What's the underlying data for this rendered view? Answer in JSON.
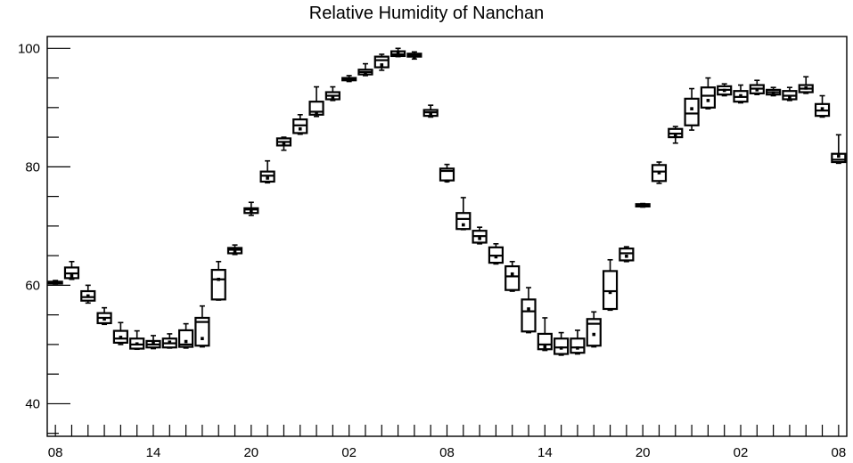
{
  "chart_data": {
    "type": "boxplot",
    "title": "Relative Humidity of Nanchan",
    "xlabel": "",
    "ylabel": "",
    "ylim": [
      34.5,
      102
    ],
    "y_ticks": [
      40,
      60,
      80,
      100
    ],
    "x_range": [
      -0.5,
      48.5
    ],
    "x_tick_positions": [
      0,
      6,
      12,
      18,
      24,
      30,
      36,
      42,
      48
    ],
    "x_tick_labels": [
      "08",
      "14",
      "20",
      "02",
      "08",
      "14",
      "20",
      "02",
      "08"
    ],
    "grid": false,
    "legend": "none",
    "series": [
      {
        "x": 0,
        "whisker_low": 60.2,
        "q1": 60.3,
        "median": 60.5,
        "q3": 60.6,
        "whisker_high": 60.8,
        "mean": 60.5
      },
      {
        "x": 1,
        "whisker_low": 61.0,
        "q1": 61.2,
        "median": 62.0,
        "q3": 63.0,
        "whisker_high": 64.0,
        "mean": 61.6
      },
      {
        "x": 2,
        "whisker_low": 57.0,
        "q1": 57.4,
        "median": 58.0,
        "q3": 59.0,
        "whisker_high": 60.0,
        "mean": 58.2
      },
      {
        "x": 3,
        "whisker_low": 53.4,
        "q1": 53.6,
        "median": 54.5,
        "q3": 55.3,
        "whisker_high": 56.2,
        "mean": 54.3
      },
      {
        "x": 4,
        "whisker_low": 50.0,
        "q1": 50.3,
        "median": 51.0,
        "q3": 52.3,
        "whisker_high": 53.7,
        "mean": 51.2
      },
      {
        "x": 5,
        "whisker_low": 49.2,
        "q1": 49.3,
        "median": 50.0,
        "q3": 51.0,
        "whisker_high": 52.3,
        "mean": 50.1
      },
      {
        "x": 6,
        "whisker_low": 49.3,
        "q1": 49.5,
        "median": 50.0,
        "q3": 50.6,
        "whisker_high": 51.5,
        "mean": 50.2
      },
      {
        "x": 7,
        "whisker_low": 49.4,
        "q1": 49.5,
        "median": 50.2,
        "q3": 51.0,
        "whisker_high": 51.8,
        "mean": 50.4
      },
      {
        "x": 8,
        "whisker_low": 49.4,
        "q1": 49.6,
        "median": 50.0,
        "q3": 52.4,
        "whisker_high": 53.5,
        "mean": 50.5
      },
      {
        "x": 9,
        "whisker_low": 49.6,
        "q1": 49.8,
        "median": 53.8,
        "q3": 54.5,
        "whisker_high": 56.5,
        "mean": 51.0
      },
      {
        "x": 10,
        "whisker_low": 57.5,
        "q1": 57.6,
        "median": 61.0,
        "q3": 62.6,
        "whisker_high": 64.0,
        "mean": 61.0
      },
      {
        "x": 11,
        "whisker_low": 65.2,
        "q1": 65.4,
        "median": 66.0,
        "q3": 66.3,
        "whisker_high": 66.8,
        "mean": 65.8
      },
      {
        "x": 12,
        "whisker_low": 71.8,
        "q1": 72.2,
        "median": 72.8,
        "q3": 73.0,
        "whisker_high": 74.0,
        "mean": 72.5
      },
      {
        "x": 13,
        "whisker_low": 77.3,
        "q1": 77.5,
        "median": 78.5,
        "q3": 79.2,
        "whisker_high": 81.0,
        "mean": 78.1
      },
      {
        "x": 14,
        "whisker_low": 82.8,
        "q1": 83.6,
        "median": 84.2,
        "q3": 84.8,
        "whisker_high": 85.0,
        "mean": 83.9
      },
      {
        "x": 15,
        "whisker_low": 85.5,
        "q1": 85.7,
        "median": 87.0,
        "q3": 88.0,
        "whisker_high": 88.8,
        "mean": 86.4
      },
      {
        "x": 16,
        "whisker_low": 88.5,
        "q1": 88.8,
        "median": 89.3,
        "q3": 91.0,
        "whisker_high": 93.5,
        "mean": 89.0
      },
      {
        "x": 17,
        "whisker_low": 91.2,
        "q1": 91.4,
        "median": 92.0,
        "q3": 92.6,
        "whisker_high": 93.5,
        "mean": 91.8
      },
      {
        "x": 18,
        "whisker_low": 94.4,
        "q1": 94.6,
        "median": 94.8,
        "q3": 95.0,
        "whisker_high": 95.4,
        "mean": 94.8
      },
      {
        "x": 19,
        "whisker_low": 95.4,
        "q1": 95.6,
        "median": 96.0,
        "q3": 96.4,
        "whisker_high": 97.4,
        "mean": 95.8
      },
      {
        "x": 20,
        "whisker_low": 96.3,
        "q1": 96.8,
        "median": 98.0,
        "q3": 98.6,
        "whisker_high": 99.0,
        "mean": 97.2
      },
      {
        "x": 21,
        "whisker_low": 98.6,
        "q1": 98.7,
        "median": 99.0,
        "q3": 99.5,
        "whisker_high": 100.0,
        "mean": 99.2
      },
      {
        "x": 22,
        "whisker_low": 98.2,
        "q1": 98.6,
        "median": 98.9,
        "q3": 99.1,
        "whisker_high": 99.4,
        "mean": 98.4
      },
      {
        "x": 23,
        "whisker_low": 88.4,
        "q1": 88.6,
        "median": 89.2,
        "q3": 89.6,
        "whisker_high": 90.4,
        "mean": 89.0
      },
      {
        "x": 24,
        "whisker_low": 77.5,
        "q1": 77.7,
        "median": 79.3,
        "q3": 79.7,
        "whisker_high": 80.4,
        "mean": 77.6
      },
      {
        "x": 25,
        "whisker_low": 69.4,
        "q1": 69.5,
        "median": 71.2,
        "q3": 72.2,
        "whisker_high": 74.8,
        "mean": 70.2
      },
      {
        "x": 26,
        "whisker_low": 67.0,
        "q1": 67.2,
        "median": 68.3,
        "q3": 69.2,
        "whisker_high": 69.8,
        "mean": 67.9
      },
      {
        "x": 27,
        "whisker_low": 63.6,
        "q1": 63.8,
        "median": 65.0,
        "q3": 66.4,
        "whisker_high": 67.0,
        "mean": 64.8
      },
      {
        "x": 28,
        "whisker_low": 59.0,
        "q1": 59.2,
        "median": 61.5,
        "q3": 63.2,
        "whisker_high": 64.0,
        "mean": 61.9
      },
      {
        "x": 29,
        "whisker_low": 52.0,
        "q1": 52.2,
        "median": 55.6,
        "q3": 57.6,
        "whisker_high": 59.6,
        "mean": 56.0
      },
      {
        "x": 30,
        "whisker_low": 49.0,
        "q1": 49.2,
        "median": 50.0,
        "q3": 51.8,
        "whisker_high": 54.5,
        "mean": 49.6
      },
      {
        "x": 31,
        "whisker_low": 48.2,
        "q1": 48.4,
        "median": 49.5,
        "q3": 51.0,
        "whisker_high": 52.0,
        "mean": 49.4
      },
      {
        "x": 32,
        "whisker_low": 48.4,
        "q1": 48.6,
        "median": 49.5,
        "q3": 51.0,
        "whisker_high": 52.4,
        "mean": 49.4
      },
      {
        "x": 33,
        "whisker_low": 49.6,
        "q1": 49.8,
        "median": 53.5,
        "q3": 54.3,
        "whisker_high": 55.5,
        "mean": 51.7
      },
      {
        "x": 34,
        "whisker_low": 55.8,
        "q1": 56.0,
        "median": 59.0,
        "q3": 62.4,
        "whisker_high": 64.3,
        "mean": 58.8
      },
      {
        "x": 35,
        "whisker_low": 64.0,
        "q1": 64.2,
        "median": 65.4,
        "q3": 66.2,
        "whisker_high": 66.5,
        "mean": 64.9
      },
      {
        "x": 36,
        "whisker_low": 73.2,
        "q1": 73.3,
        "median": 73.5,
        "q3": 73.7,
        "whisker_high": 73.8,
        "mean": 73.5
      },
      {
        "x": 37,
        "whisker_low": 77.2,
        "q1": 77.6,
        "median": 79.2,
        "q3": 80.3,
        "whisker_high": 80.8,
        "mean": 79.0
      },
      {
        "x": 38,
        "whisker_low": 84.0,
        "q1": 85.0,
        "median": 85.6,
        "q3": 86.4,
        "whisker_high": 86.8,
        "mean": 85.4
      },
      {
        "x": 39,
        "whisker_low": 86.2,
        "q1": 87.0,
        "median": 89.0,
        "q3": 91.5,
        "whisker_high": 93.2,
        "mean": 89.8
      },
      {
        "x": 40,
        "whisker_low": 89.8,
        "q1": 90.0,
        "median": 92.0,
        "q3": 93.4,
        "whisker_high": 95.0,
        "mean": 91.2
      },
      {
        "x": 41,
        "whisker_low": 92.0,
        "q1": 92.2,
        "median": 93.0,
        "q3": 93.6,
        "whisker_high": 94.0,
        "mean": 92.9
      },
      {
        "x": 42,
        "whisker_low": 90.8,
        "q1": 91.0,
        "median": 91.8,
        "q3": 92.8,
        "whisker_high": 93.8,
        "mean": 92.0
      },
      {
        "x": 43,
        "whisker_low": 92.2,
        "q1": 92.4,
        "median": 93.2,
        "q3": 93.8,
        "whisker_high": 94.6,
        "mean": 93.0
      },
      {
        "x": 44,
        "whisker_low": 92.0,
        "q1": 92.2,
        "median": 92.6,
        "q3": 93.0,
        "whisker_high": 93.4,
        "mean": 92.5
      },
      {
        "x": 45,
        "whisker_low": 91.2,
        "q1": 91.4,
        "median": 92.0,
        "q3": 92.8,
        "whisker_high": 93.4,
        "mean": 91.8
      },
      {
        "x": 46,
        "whisker_low": 92.4,
        "q1": 92.6,
        "median": 93.2,
        "q3": 93.8,
        "whisker_high": 95.2,
        "mean": 93.3
      },
      {
        "x": 47,
        "whisker_low": 88.4,
        "q1": 88.6,
        "median": 89.5,
        "q3": 90.6,
        "whisker_high": 92.0,
        "mean": 89.8
      },
      {
        "x": 48,
        "whisker_low": 80.6,
        "q1": 80.8,
        "median": 81.2,
        "q3": 82.2,
        "whisker_high": 85.4,
        "mean": 81.8
      }
    ]
  }
}
